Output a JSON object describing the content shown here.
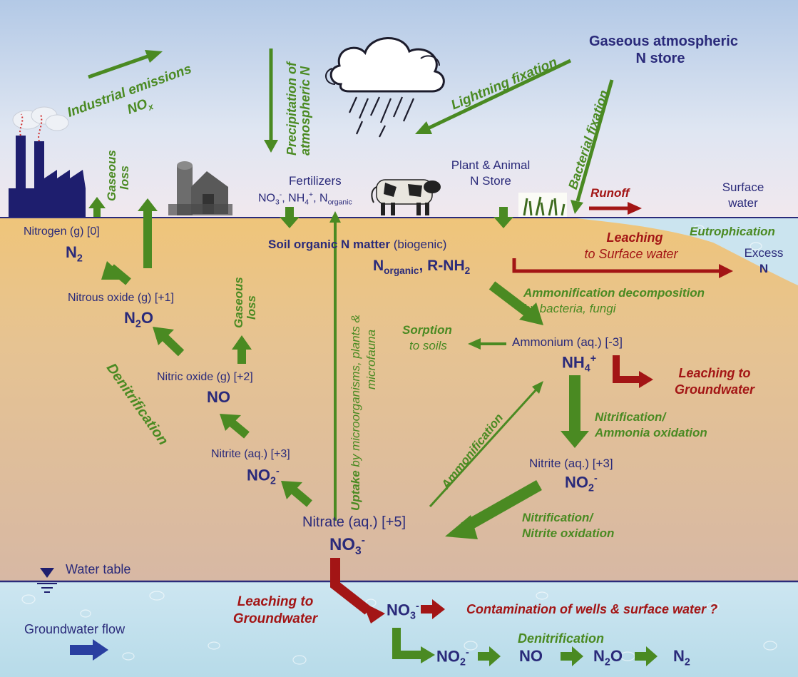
{
  "atmosphere": {
    "gaseous_store_line1": "Gaseous atmospheric",
    "gaseous_store_line2": "N store",
    "industrial_emissions": "Industrial emissions",
    "nox": "NO",
    "nox_sub": "x",
    "precip_line1": "Precipitation of",
    "precip_line2": "atmospheric N",
    "lightning": "Lightning fixation",
    "bacterial": "Bacterial fixation",
    "gaseous_loss_1_line1": "Gaseous",
    "gaseous_loss_1_line2": "loss"
  },
  "surface": {
    "fertilizers": "Fertilizers",
    "fert_formula_a": "NO",
    "fert_formula_a_sub": "3",
    "fert_formula_a_sup": "-",
    "fert_formula_b": ", NH",
    "fert_formula_b_sub": "4",
    "fert_formula_b_sup": "+",
    "fert_formula_c": ", N",
    "fert_formula_c_sub": "organic",
    "plant_animal_line1": "Plant & Animal",
    "plant_animal_line2": "N Store",
    "runoff": "Runoff",
    "surface_water_line1": "Surface",
    "surface_water_line2": "water",
    "eutrophication": "Eutrophication",
    "excess_line1": "Excess",
    "excess_line2": "N"
  },
  "soil": {
    "nitrogen_g": "Nitrogen (g)  [0]",
    "n2": "N",
    "n2_sub": "2",
    "nitrous_oxide": "Nitrous oxide (g)  [+1]",
    "n2o_a": "N",
    "n2o_sub": "2",
    "n2o_b": "O",
    "nitric_oxide": "Nitric oxide (g) [+2]",
    "no": "NO",
    "gaseous_loss_2_line1": "Gaseous",
    "gaseous_loss_2_line2": "loss",
    "denitrification": "Denitrification",
    "nitrite_left": "Nitrite (aq.) [+3]",
    "no2_left": "NO",
    "no2_left_sub": "2",
    "no2_left_sup": "-",
    "uptake_bold": "Uptake",
    "uptake_rest_line1": " by microorganisms, plants &",
    "uptake_line2": "microfauna",
    "soil_organic_bold": "Soil  organic  N  matter",
    "soil_organic_rest": " (biogenic)",
    "norganic": "N",
    "norganic_sub": "organic",
    "rnh2": ",  R-NH",
    "rnh2_sub": "2",
    "leaching_surface_line1": "Leaching",
    "leaching_surface_line2": "to Surface water",
    "ammonification_decomp_line1": "Ammonification decomposition",
    "ammonification_decomp_line2": "by bacteria, fungi",
    "sorption_line1": "Sorption",
    "sorption_line2": "to soils",
    "ammonium": "Ammonium (aq.) [-3]",
    "nh4": "NH",
    "nh4_sub": "4",
    "nh4_sup": "+",
    "leaching_gw_1_line1": "Leaching to",
    "leaching_gw_1_line2": "Groundwater",
    "nitrification_ammonia_line1": "Nitrification/",
    "nitrification_ammonia_line2": "Ammonia oxidation",
    "ammonification": "Ammonification",
    "nitrite_right": "Nitrite (aq.) [+3]",
    "no2_right": "NO",
    "no2_right_sub": "2",
    "no2_right_sup": "-",
    "nitrification_nitrite_line1": "Nitrification/",
    "nitrification_nitrite_line2": "Nitrite oxidation",
    "nitrate": "Nitrate (aq.)  [+5]",
    "no3": "NO",
    "no3_sub": "3",
    "no3_sup": "-"
  },
  "groundwater": {
    "water_table": "Water table",
    "groundwater_flow": "Groundwater flow",
    "leaching_gw_2_line1": "Leaching to",
    "leaching_gw_2_line2": "Groundwater",
    "no3_gw": "NO",
    "no3_gw_sub": "3",
    "no3_gw_sup": "-",
    "contamination": "Contamination of wells & surface water ?",
    "denitrification": "Denitrification",
    "chain_no2": "NO",
    "chain_no2_sub": "2",
    "chain_no2_sup": "-",
    "chain_no": "NO",
    "chain_n2o_a": "N",
    "chain_n2o_sub": "2",
    "chain_n2o_b": "O",
    "chain_n2": "N",
    "chain_n2_sub": "2"
  },
  "colors": {
    "green_arrow": "#4a8a22",
    "red_arrow": "#a31515",
    "navy_text": "#2a2a7a",
    "sky_top": "#bcd0ea",
    "soil_top": "#ecc77a",
    "groundwater": "#cfe4ef"
  }
}
